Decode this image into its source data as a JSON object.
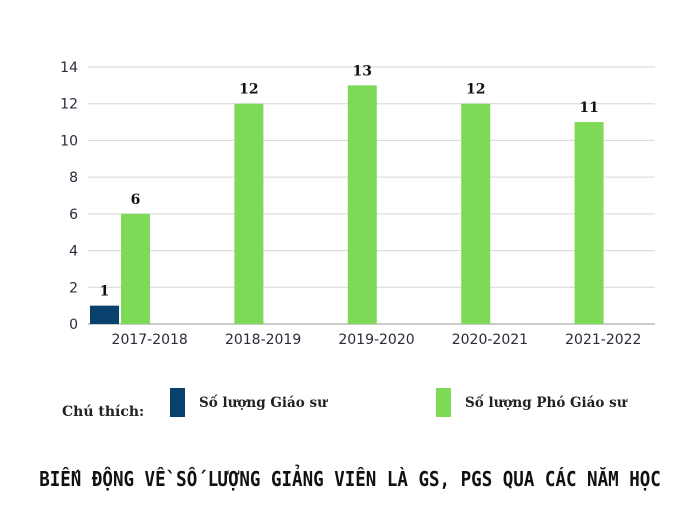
{
  "chart_data": {
    "type": "bar",
    "title": "BIẾN ĐỘNG VỀ SỐ LƯỢNG GIẢNG VIÊN LÀ GS, PGS QUA CÁC NĂM HỌC",
    "categories": [
      "2017-2018",
      "2018-2019",
      "2019-2020",
      "2020-2021",
      "2021-2022"
    ],
    "series": [
      {
        "name": "Số lượng Giáo sư",
        "values": [
          1,
          0,
          0,
          0,
          0
        ],
        "color": "#08416c"
      },
      {
        "name": "Số lượng Phó Giáo sư",
        "values": [
          6,
          12,
          13,
          12,
          11
        ],
        "color": "#7ed957"
      }
    ],
    "data_labels": [
      [
        "1",
        "",
        "",
        "",
        ""
      ],
      [
        "6",
        "12",
        "13",
        "12",
        "11"
      ]
    ],
    "yticks": [
      0,
      2,
      4,
      6,
      8,
      10,
      12,
      14
    ],
    "ylim": [
      0,
      14
    ],
    "xlabel": "",
    "ylabel": "",
    "grid": true,
    "legend_position": "bottom"
  },
  "legend": {
    "caption": "Chú thích:",
    "items": [
      {
        "label": "Số lượng Giáo sư",
        "color": "#08416c"
      },
      {
        "label": "Số lượng Phó Giáo sư",
        "color": "#7ed957"
      }
    ]
  }
}
